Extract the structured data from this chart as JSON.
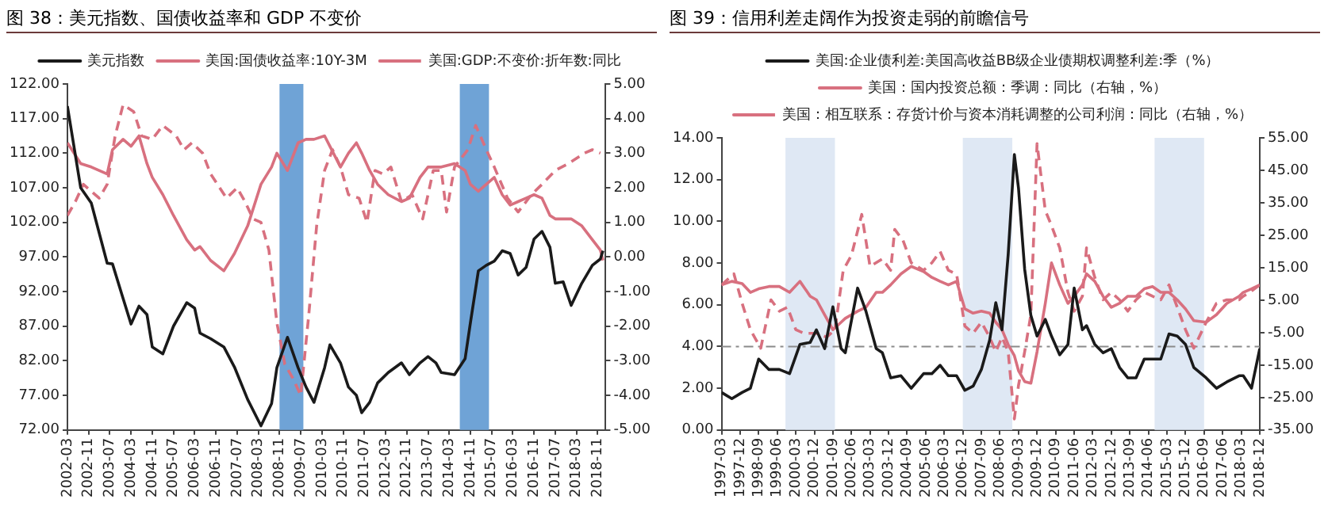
{
  "chart_data": [
    {
      "type": "line",
      "title": "图 38：美元指数、国债收益率和 GDP 不变价",
      "legend": "top",
      "xlim": [
        "2002-03",
        "2019-02"
      ],
      "xticks": [
        "2002-03",
        "2002-11",
        "2003-07",
        "2004-03",
        "2004-11",
        "2005-07",
        "2006-03",
        "2006-11",
        "2007-07",
        "2008-03",
        "2008-11",
        "2009-07",
        "2010-03",
        "2010-11",
        "2011-07",
        "2012-03",
        "2012-11",
        "2013-07",
        "2014-03",
        "2014-11",
        "2015-07",
        "2016-03",
        "2016-11",
        "2017-07",
        "2018-03",
        "2018-11"
      ],
      "ylim": [
        72,
        122
      ],
      "yticks": [
        {
          "value": 72,
          "label": "72.00"
        },
        {
          "value": 77,
          "label": "77.00"
        },
        {
          "value": 82,
          "label": "82.00"
        },
        {
          "value": 87,
          "label": "87.00"
        },
        {
          "value": 92,
          "label": "92.00"
        },
        {
          "value": 97,
          "label": "97.00"
        },
        {
          "value": 102,
          "label": "102.00"
        },
        {
          "value": 107,
          "label": "107.00"
        },
        {
          "value": 112,
          "label": "112.00"
        },
        {
          "value": 117,
          "label": "117.00"
        },
        {
          "value": 122,
          "label": "122.00"
        }
      ],
      "y2lim": [
        -5,
        5
      ],
      "y2ticks": [
        {
          "value": -5,
          "label": "-5.00"
        },
        {
          "value": -4,
          "label": "-4.00"
        },
        {
          "value": -3,
          "label": "-3.00"
        },
        {
          "value": -2,
          "label": "-2.00"
        },
        {
          "value": -1,
          "label": "-1.00"
        },
        {
          "value": 0,
          "label": "0.00"
        },
        {
          "value": 1,
          "label": "1.00"
        },
        {
          "value": 2,
          "label": "2.00"
        },
        {
          "value": 3,
          "label": "3.00"
        },
        {
          "value": 4,
          "label": "4.00"
        },
        {
          "value": 5,
          "label": "5.00"
        }
      ],
      "bands": [
        {
          "axis": "x",
          "from": "2008-11",
          "to": "2009-08",
          "color": "#6fa3d6"
        },
        {
          "axis": "x",
          "from": "2014-07",
          "to": "2015-06",
          "color": "#6fa3d6"
        }
      ],
      "series": [
        {
          "name": "美元指数",
          "color": "#1a1a1a",
          "line_style": "solid",
          "x": [
            "2002-03",
            "2002-08",
            "2002-12",
            "2003-06",
            "2003-08",
            "2003-12",
            "2004-03",
            "2004-06",
            "2004-09",
            "2004-11",
            "2005-03",
            "2005-07",
            "2005-12",
            "2006-03",
            "2006-05",
            "2006-09",
            "2007-02",
            "2007-06",
            "2007-11",
            "2008-04",
            "2008-08",
            "2008-10",
            "2009-02",
            "2009-06",
            "2009-09",
            "2009-12",
            "2010-04",
            "2010-06",
            "2010-10",
            "2011-01",
            "2011-04",
            "2011-06",
            "2011-09",
            "2011-12",
            "2012-04",
            "2012-09",
            "2012-12",
            "2013-04",
            "2013-07",
            "2013-10",
            "2013-12",
            "2014-05",
            "2014-09",
            "2014-11",
            "2015-02",
            "2015-05",
            "2015-08",
            "2015-11",
            "2016-02",
            "2016-05",
            "2016-08",
            "2016-11",
            "2017-02",
            "2017-05",
            "2017-07",
            "2017-10",
            "2018-01",
            "2018-05",
            "2018-09",
            "2018-12",
            "2019-01"
          ],
          "values": [
            118.8,
            107,
            104.8,
            96.1,
            96,
            91,
            87.3,
            89.9,
            88.7,
            84,
            83,
            87,
            90.4,
            89.6,
            86,
            85.2,
            84,
            81.1,
            76.4,
            72.6,
            75.8,
            81,
            85.4,
            81,
            78.2,
            76,
            81,
            84.3,
            81.7,
            78.2,
            77,
            74.5,
            76,
            78.8,
            80.3,
            81.7,
            80,
            81.7,
            82.6,
            81.7,
            80.3,
            80,
            82.3,
            87.5,
            95,
            95.8,
            96.4,
            97.9,
            97.5,
            94.4,
            95.5,
            99.6,
            100.7,
            98.4,
            93.2,
            93.4,
            90,
            93.2,
            95.8,
            96.7,
            97.9
          ]
        },
        {
          "name": "美国:国债收益率:10Y-3M",
          "color": "#d8707f",
          "line_style": "solid",
          "axis": "y2",
          "x": [
            "2002-03",
            "2002-08",
            "2002-12",
            "2003-06",
            "2003-08",
            "2003-12",
            "2004-03",
            "2004-06",
            "2004-09",
            "2004-11",
            "2005-03",
            "2005-07",
            "2005-12",
            "2006-03",
            "2006-05",
            "2006-09",
            "2007-02",
            "2007-06",
            "2007-11",
            "2008-04",
            "2008-08",
            "2008-10",
            "2009-02",
            "2009-06",
            "2009-09",
            "2009-12",
            "2010-04",
            "2010-06",
            "2010-10",
            "2011-01",
            "2011-04",
            "2011-06",
            "2011-09",
            "2011-12",
            "2012-04",
            "2012-09",
            "2012-12",
            "2013-04",
            "2013-07",
            "2013-10",
            "2013-12",
            "2014-05",
            "2014-09",
            "2014-11",
            "2015-02",
            "2015-05",
            "2015-08",
            "2015-11",
            "2016-02",
            "2016-05",
            "2016-08",
            "2016-11",
            "2017-02",
            "2017-05",
            "2017-07",
            "2017-10",
            "2018-01",
            "2018-05",
            "2018-09",
            "2018-12",
            "2019-01"
          ],
          "values": [
            3.3,
            2.7,
            2.6,
            2.4,
            3.1,
            3.4,
            3.2,
            3.5,
            2.7,
            2.3,
            1.8,
            1.2,
            0.5,
            0.2,
            0.3,
            -0.1,
            -0.4,
            0.1,
            0.9,
            2.1,
            2.6,
            3.0,
            2.5,
            3.3,
            3.4,
            3.4,
            3.5,
            3.2,
            2.6,
            3.0,
            3.3,
            3.0,
            2.5,
            2.1,
            1.8,
            1.6,
            1.7,
            2.3,
            2.6,
            2.6,
            2.6,
            2.7,
            2.5,
            2.1,
            1.9,
            2.1,
            2.3,
            1.8,
            1.5,
            1.6,
            1.7,
            1.8,
            1.7,
            1.2,
            1.1,
            1.1,
            1.1,
            0.9,
            0.5,
            0.2,
            -0.1
          ]
        },
        {
          "name": "美国:GDP:不变价:折年数:同比",
          "color": "#d8707f",
          "line_style": "dashed",
          "axis": "y2",
          "x": [
            "2002-03",
            "2002-06",
            "2002-09",
            "2003-03",
            "2003-06",
            "2003-09",
            "2003-12",
            "2004-04",
            "2004-07",
            "2004-11",
            "2005-03",
            "2005-08",
            "2005-11",
            "2006-02",
            "2006-06",
            "2006-09",
            "2007-03",
            "2007-07",
            "2007-10",
            "2008-01",
            "2008-04",
            "2008-07",
            "2008-10",
            "2009-01",
            "2009-04",
            "2009-07",
            "2009-10",
            "2010-01",
            "2010-04",
            "2010-07",
            "2010-10",
            "2011-01",
            "2011-05",
            "2011-08",
            "2011-11",
            "2012-02",
            "2012-05",
            "2012-09",
            "2013-01",
            "2013-05",
            "2013-09",
            "2013-12",
            "2014-02",
            "2014-05",
            "2014-10",
            "2015-01",
            "2015-05",
            "2015-08",
            "2016-01",
            "2016-05",
            "2016-10",
            "2017-02",
            "2017-07",
            "2017-12",
            "2018-06",
            "2018-09",
            "2018-12"
          ],
          "values": [
            1.2,
            1.6,
            2.1,
            1.7,
            2.1,
            3.5,
            4.4,
            4.2,
            3.5,
            3.4,
            3.8,
            3.5,
            3.1,
            3.3,
            3.0,
            2.4,
            1.7,
            2.0,
            1.6,
            1.1,
            1.0,
            0.2,
            -1.9,
            -3.1,
            -3.5,
            -4.0,
            -1.7,
            0.9,
            2.5,
            3.1,
            2.6,
            1.8,
            1.7,
            1.0,
            2.5,
            2.4,
            2.6,
            1.6,
            1.8,
            1.1,
            2.5,
            2.5,
            1.3,
            2.6,
            3.1,
            3.8,
            3.1,
            2.6,
            1.7,
            1.3,
            1.8,
            2.1,
            2.5,
            2.7,
            3.0,
            3.1,
            3.0
          ]
        }
      ]
    },
    {
      "type": "line",
      "title": "图 39：信用利差走阔作为投资走弱的前瞻信号",
      "legend": "top",
      "xlim": [
        "1997-03",
        "2018-12"
      ],
      "xticks": [
        "1997-03",
        "1997-12",
        "1998-09",
        "1999-06",
        "2000-03",
        "2000-12",
        "2001-09",
        "2002-06",
        "2003-03",
        "2003-12",
        "2004-09",
        "2005-06",
        "2006-03",
        "2006-12",
        "2007-09",
        "2008-06",
        "2009-03",
        "2009-12",
        "2010-09",
        "2011-06",
        "2012-03",
        "2012-12",
        "2013-09",
        "2014-06",
        "2015-03",
        "2015-12",
        "2016-09",
        "2017-06",
        "2018-03",
        "2018-12"
      ],
      "ylim": [
        0,
        14
      ],
      "yticks": [
        {
          "value": 0,
          "label": "0.00"
        },
        {
          "value": 2,
          "label": "2.00"
        },
        {
          "value": 4,
          "label": "4.00"
        },
        {
          "value": 6,
          "label": "6.00"
        },
        {
          "value": 8,
          "label": "8.00"
        },
        {
          "value": 10,
          "label": "10.00"
        },
        {
          "value": 12,
          "label": "12.00"
        },
        {
          "value": 14,
          "label": "14.00"
        }
      ],
      "y2lim": [
        -35,
        55
      ],
      "y2ticks": [
        {
          "value": -35,
          "label": "-35.00"
        },
        {
          "value": -25,
          "label": "-25.00"
        },
        {
          "value": -15,
          "label": "-15.00"
        },
        {
          "value": -5,
          "label": "-5.00"
        },
        {
          "value": 5,
          "label": "5.00"
        },
        {
          "value": 15,
          "label": "15.00"
        },
        {
          "value": 25,
          "label": "25.00"
        },
        {
          "value": 35,
          "label": "35.00"
        },
        {
          "value": 45,
          "label": "45.00"
        },
        {
          "value": 55,
          "label": "55.00"
        }
      ],
      "bands": [
        {
          "axis": "x",
          "from": "1999-10",
          "to": "2001-10",
          "color": "#dfe8f4"
        },
        {
          "axis": "x",
          "from": "2006-12",
          "to": "2008-12",
          "color": "#dfe8f4"
        },
        {
          "axis": "x",
          "from": "2014-09",
          "to": "2016-09",
          "color": "#dfe8f4"
        }
      ],
      "ref_lines": [
        {
          "axis": "y",
          "value": 4,
          "color": "#8a8a8a",
          "line_style": "dashed"
        }
      ],
      "series": [
        {
          "name": "美国:企业债利差:美国高收益BB级企业债期权调整利差:季（%）",
          "color": "#1a1a1a",
          "line_style": "solid",
          "x": [
            "1997-03",
            "1997-08",
            "1998-01",
            "1998-05",
            "1998-09",
            "1999-02",
            "1999-07",
            "1999-12",
            "2000-05",
            "2000-10",
            "2001-01",
            "2001-05",
            "2001-09",
            "2002-01",
            "2002-03",
            "2002-09",
            "2003-01",
            "2003-06",
            "2003-09",
            "2004-01",
            "2004-06",
            "2004-11",
            "2005-05",
            "2005-09",
            "2006-01",
            "2006-05",
            "2006-09",
            "2007-01",
            "2007-05",
            "2007-09",
            "2008-01",
            "2008-04",
            "2008-07",
            "2008-10",
            "2009-01",
            "2009-03",
            "2009-06",
            "2009-09",
            "2009-12",
            "2010-04",
            "2010-07",
            "2010-11",
            "2011-03",
            "2011-06",
            "2011-10",
            "2011-12",
            "2012-04",
            "2012-08",
            "2012-12",
            "2013-04",
            "2013-08",
            "2013-12",
            "2014-04",
            "2014-08",
            "2014-12",
            "2015-04",
            "2015-08",
            "2015-12",
            "2016-04",
            "2016-10",
            "2017-03",
            "2017-08",
            "2018-02",
            "2018-04",
            "2018-08",
            "2018-12"
          ],
          "values": [
            1.8,
            1.5,
            1.8,
            2.0,
            3.4,
            2.9,
            2.9,
            2.7,
            4.1,
            4.2,
            4.8,
            3.9,
            5.9,
            3.9,
            3.7,
            6.8,
            5.7,
            3.9,
            3.7,
            2.5,
            2.6,
            2.0,
            2.7,
            2.7,
            3.1,
            2.6,
            2.6,
            1.9,
            2.1,
            2.9,
            4.3,
            6.1,
            4.8,
            8.4,
            13.2,
            11.6,
            7.7,
            5.5,
            4.5,
            5.3,
            4.5,
            3.6,
            4.1,
            6.8,
            4.8,
            5.0,
            4.1,
            3.7,
            3.9,
            3.0,
            2.5,
            2.5,
            3.4,
            3.4,
            3.4,
            4.6,
            4.5,
            4.1,
            3.0,
            2.5,
            2.0,
            2.3,
            2.6,
            2.6,
            2.0,
            3.9
          ]
        },
        {
          "name": "美国：国内投资总额：季调：同比（右轴，%）",
          "color": "#d8707f",
          "line_style": "solid",
          "axis": "y2",
          "x": [
            "1997-03",
            "1997-08",
            "1998-01",
            "1998-05",
            "1998-09",
            "1999-02",
            "1999-07",
            "1999-12",
            "2000-05",
            "2000-10",
            "2001-01",
            "2001-05",
            "2001-09",
            "2002-01",
            "2002-03",
            "2002-09",
            "2003-01",
            "2003-06",
            "2003-09",
            "2004-01",
            "2004-06",
            "2004-11",
            "2005-05",
            "2005-09",
            "2006-01",
            "2006-05",
            "2006-09",
            "2007-01",
            "2007-05",
            "2007-09",
            "2008-01",
            "2008-04",
            "2008-07",
            "2008-10",
            "2009-01",
            "2009-03",
            "2009-06",
            "2009-09",
            "2009-12",
            "2010-04",
            "2010-07",
            "2010-11",
            "2011-03",
            "2011-06",
            "2011-10",
            "2011-12",
            "2012-04",
            "2012-08",
            "2012-12",
            "2013-04",
            "2013-08",
            "2013-12",
            "2014-04",
            "2014-08",
            "2014-12",
            "2015-04",
            "2015-08",
            "2015-12",
            "2016-04",
            "2016-10",
            "2017-03",
            "2017-08",
            "2018-02",
            "2018-04",
            "2018-08",
            "2018-12"
          ],
          "values": [
            9.7,
            10.8,
            10.1,
            7.4,
            8.5,
            9.2,
            9.2,
            7.4,
            10.8,
            6.2,
            5.1,
            0.5,
            -4.1,
            -1.8,
            -0.6,
            1.6,
            2.8,
            7.4,
            7.4,
            9.7,
            13.1,
            15.4,
            13.8,
            12,
            10.8,
            9.7,
            10.8,
            2.3,
            1.0,
            1.6,
            1.0,
            -1.8,
            -4.1,
            -8.7,
            -12.1,
            -16.7,
            -20.1,
            -20.6,
            -10.9,
            4.0,
            16.5,
            9.7,
            4.0,
            6.2,
            9.7,
            13.1,
            10.8,
            6.2,
            2.8,
            4.0,
            6.2,
            6.2,
            8.5,
            9.2,
            7.4,
            7.4,
            5.1,
            2.3,
            -1.3,
            -1.8,
            0.5,
            4.0,
            6.2,
            7.4,
            8.5,
            9.7
          ]
        },
        {
          "name": "美国：相互联系：存货计价与资本消耗调整的公司利润：同比（右轴，%）",
          "color": "#d8707f",
          "line_style": "dashed",
          "axis": "y2",
          "x": [
            "1997-03",
            "1997-09",
            "1998-01",
            "1998-05",
            "1998-10",
            "1999-03",
            "1999-07",
            "1999-11",
            "2000-03",
            "2000-07",
            "2001-01",
            "2001-06",
            "2001-10",
            "2002-02",
            "2002-06",
            "2002-11",
            "2003-03",
            "2003-09",
            "2004-01",
            "2004-03",
            "2004-07",
            "2004-11",
            "2005-05",
            "2005-09",
            "2006-01",
            "2006-05",
            "2006-09",
            "2007-01",
            "2007-05",
            "2007-09",
            "2008-01",
            "2008-04",
            "2008-07",
            "2008-10",
            "2009-01",
            "2009-03",
            "2009-06",
            "2009-09",
            "2009-12",
            "2010-04",
            "2010-07",
            "2010-11",
            "2011-03",
            "2011-06",
            "2011-10",
            "2011-12",
            "2012-04",
            "2012-08",
            "2012-12",
            "2013-04",
            "2013-08",
            "2013-12",
            "2014-04",
            "2014-08",
            "2014-12",
            "2015-04",
            "2015-08",
            "2015-12",
            "2016-04",
            "2016-10",
            "2017-03",
            "2017-08",
            "2018-02",
            "2018-04",
            "2018-08",
            "2018-12"
          ],
          "values": [
            9.7,
            13.1,
            4.0,
            -4.1,
            -9.8,
            5.1,
            1.6,
            2.8,
            -4.1,
            -5.2,
            -5.2,
            -6.4,
            -4.1,
            14.2,
            18.8,
            31.4,
            15.4,
            17.7,
            14.2,
            26.8,
            23.4,
            16.5,
            14.2,
            16.5,
            20.0,
            14.2,
            13,
            -3.0,
            -5.2,
            -1.8,
            -6.4,
            -10.9,
            -6.4,
            -10.9,
            -31.6,
            -21.3,
            -10.9,
            0.5,
            53.2,
            32.6,
            28.0,
            21.1,
            7.4,
            1.6,
            6.2,
            21.1,
            12,
            5.1,
            7.4,
            5.1,
            1.6,
            5.1,
            7.4,
            6.2,
            5.1,
            9.7,
            2.8,
            -4.1,
            -9.8,
            -1.8,
            4.0,
            5.1,
            5.1,
            6.2,
            7.8,
            9.7
          ]
        }
      ]
    }
  ]
}
